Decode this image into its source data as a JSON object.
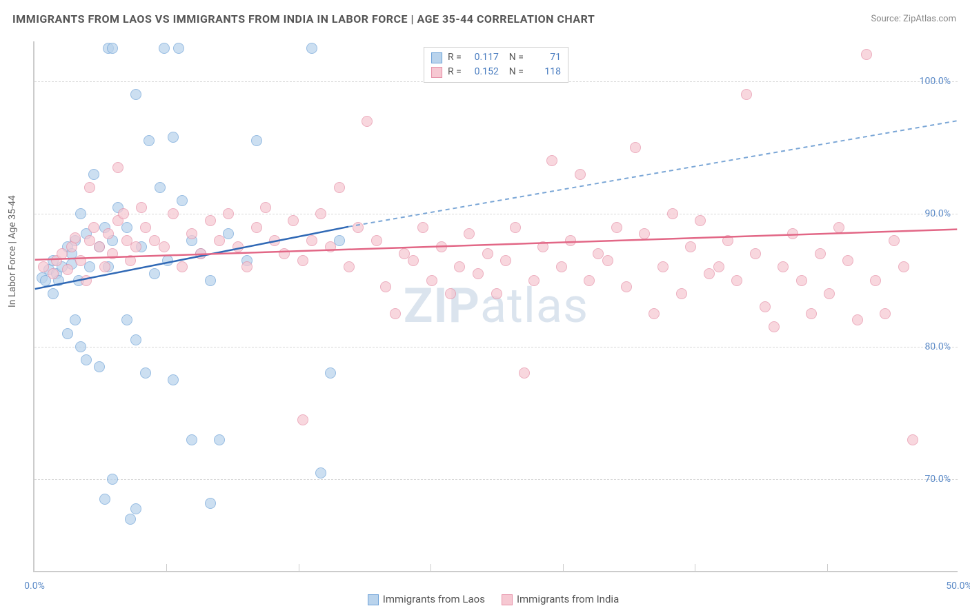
{
  "title": "IMMIGRANTS FROM LAOS VS IMMIGRANTS FROM INDIA IN LABOR FORCE | AGE 35-44 CORRELATION CHART",
  "source_label": "Source:",
  "source_name": "ZipAtlas.com",
  "watermark_a": "ZIP",
  "watermark_b": "atlas",
  "chart": {
    "type": "scatter",
    "ylabel": "In Labor Force | Age 35-44",
    "xlim": [
      0,
      50
    ],
    "ylim": [
      63,
      103
    ],
    "x_ticks": [
      0.0,
      50.0
    ],
    "x_tick_labels": [
      "0.0%",
      "50.0%"
    ],
    "x_minor_ticks": [
      7.14,
      14.29,
      21.43,
      28.57,
      35.71,
      42.86
    ],
    "y_ticks": [
      70.0,
      80.0,
      90.0,
      100.0
    ],
    "y_tick_labels": [
      "70.0%",
      "80.0%",
      "90.0%",
      "100.0%"
    ],
    "background_color": "#ffffff",
    "grid_color": "#d8d8d8",
    "axis_color": "#cccccc",
    "tick_label_color": "#5b8ac7",
    "point_radius": 8,
    "series": [
      {
        "name": "Immigrants from Laos",
        "color_fill": "#b9d3ec",
        "color_stroke": "#6fa3d8",
        "R": "0.117",
        "N": "71",
        "trend": {
          "x1": 0,
          "y1": 84.3,
          "x2": 17,
          "y2": 89.0,
          "x2_dash": 50,
          "y2_dash": 97.0,
          "solid_color": "#2f68b5",
          "dash_color": "#7aa6d6",
          "width": 2.5
        },
        "points": [
          [
            0.4,
            85.2
          ],
          [
            0.6,
            85.0
          ],
          [
            0.8,
            85.8
          ],
          [
            1.0,
            86.5
          ],
          [
            1.0,
            84.0
          ],
          [
            1.2,
            85.5
          ],
          [
            1.3,
            85.0
          ],
          [
            1.5,
            86.0
          ],
          [
            1.8,
            87.5
          ],
          [
            2.0,
            86.2
          ],
          [
            2.0,
            87.0
          ],
          [
            2.2,
            88.0
          ],
          [
            2.4,
            85.0
          ],
          [
            2.5,
            90.0
          ],
          [
            2.8,
            88.5
          ],
          [
            3.0,
            86.0
          ],
          [
            3.2,
            93.0
          ],
          [
            3.5,
            87.5
          ],
          [
            3.8,
            89.0
          ],
          [
            4.0,
            86.0
          ],
          [
            4.2,
            88.0
          ],
          [
            4.5,
            90.5
          ],
          [
            2.5,
            80.0
          ],
          [
            2.8,
            79.0
          ],
          [
            3.5,
            78.5
          ],
          [
            1.8,
            81.0
          ],
          [
            2.2,
            82.0
          ],
          [
            4.0,
            102.5
          ],
          [
            4.2,
            102.5
          ],
          [
            7.0,
            102.5
          ],
          [
            7.8,
            102.5
          ],
          [
            15.0,
            102.5
          ],
          [
            5.5,
            99.0
          ],
          [
            6.2,
            95.5
          ],
          [
            7.5,
            95.8
          ],
          [
            6.8,
            92.0
          ],
          [
            8.0,
            91.0
          ],
          [
            5.0,
            89.0
          ],
          [
            5.8,
            87.5
          ],
          [
            6.5,
            85.5
          ],
          [
            7.2,
            86.5
          ],
          [
            8.5,
            88.0
          ],
          [
            9.0,
            87.0
          ],
          [
            9.5,
            85.0
          ],
          [
            10.5,
            88.5
          ],
          [
            11.5,
            86.5
          ],
          [
            12.0,
            95.5
          ],
          [
            5.0,
            82.0
          ],
          [
            5.5,
            80.5
          ],
          [
            6.0,
            78.0
          ],
          [
            7.5,
            77.5
          ],
          [
            8.5,
            73.0
          ],
          [
            3.8,
            68.5
          ],
          [
            4.2,
            70.0
          ],
          [
            5.2,
            67.0
          ],
          [
            5.5,
            67.8
          ],
          [
            9.5,
            68.2
          ],
          [
            10.0,
            73.0
          ],
          [
            15.5,
            70.5
          ],
          [
            16.0,
            78.0
          ],
          [
            16.5,
            88.0
          ]
        ]
      },
      {
        "name": "Immigrants from India",
        "color_fill": "#f6c8d2",
        "color_stroke": "#e690a7",
        "R": "0.152",
        "N": "118",
        "trend": {
          "x1": 0,
          "y1": 86.5,
          "x2": 50,
          "y2": 88.8,
          "solid_color": "#e26786",
          "width": 2.5
        },
        "points": [
          [
            0.5,
            86.0
          ],
          [
            1.0,
            85.5
          ],
          [
            1.2,
            86.5
          ],
          [
            1.5,
            87.0
          ],
          [
            1.8,
            85.8
          ],
          [
            2.0,
            87.5
          ],
          [
            2.2,
            88.2
          ],
          [
            2.5,
            86.5
          ],
          [
            2.8,
            85.0
          ],
          [
            3.0,
            88.0
          ],
          [
            3.2,
            89.0
          ],
          [
            3.5,
            87.5
          ],
          [
            3.8,
            86.0
          ],
          [
            4.0,
            88.5
          ],
          [
            4.2,
            87.0
          ],
          [
            4.5,
            89.5
          ],
          [
            4.8,
            90.0
          ],
          [
            5.0,
            88.0
          ],
          [
            5.2,
            86.5
          ],
          [
            5.5,
            87.5
          ],
          [
            5.8,
            90.5
          ],
          [
            6.0,
            89.0
          ],
          [
            6.5,
            88.0
          ],
          [
            7.0,
            87.5
          ],
          [
            7.5,
            90.0
          ],
          [
            8.0,
            86.0
          ],
          [
            8.5,
            88.5
          ],
          [
            9.0,
            87.0
          ],
          [
            9.5,
            89.5
          ],
          [
            10.0,
            88.0
          ],
          [
            10.5,
            90.0
          ],
          [
            11.0,
            87.5
          ],
          [
            11.5,
            86.0
          ],
          [
            12.0,
            89.0
          ],
          [
            12.5,
            90.5
          ],
          [
            13.0,
            88.0
          ],
          [
            13.5,
            87.0
          ],
          [
            14.0,
            89.5
          ],
          [
            14.5,
            86.5
          ],
          [
            15.0,
            88.0
          ],
          [
            15.5,
            90.0
          ],
          [
            16.0,
            87.5
          ],
          [
            16.5,
            92.0
          ],
          [
            17.0,
            86.0
          ],
          [
            17.5,
            89.0
          ],
          [
            18.0,
            97.0
          ],
          [
            18.5,
            88.0
          ],
          [
            19.0,
            84.5
          ],
          [
            19.5,
            82.5
          ],
          [
            20.0,
            87.0
          ],
          [
            20.5,
            86.5
          ],
          [
            21.0,
            89.0
          ],
          [
            21.5,
            85.0
          ],
          [
            22.0,
            87.5
          ],
          [
            22.5,
            84.0
          ],
          [
            23.0,
            86.0
          ],
          [
            23.5,
            88.5
          ],
          [
            24.0,
            85.5
          ],
          [
            24.5,
            87.0
          ],
          [
            25.0,
            84.0
          ],
          [
            25.5,
            86.5
          ],
          [
            26.0,
            89.0
          ],
          [
            26.5,
            78.0
          ],
          [
            27.0,
            85.0
          ],
          [
            27.5,
            87.5
          ],
          [
            28.0,
            94.0
          ],
          [
            28.5,
            86.0
          ],
          [
            29.0,
            88.0
          ],
          [
            29.5,
            93.0
          ],
          [
            30.0,
            85.0
          ],
          [
            30.5,
            87.0
          ],
          [
            31.0,
            86.5
          ],
          [
            31.5,
            89.0
          ],
          [
            32.0,
            84.5
          ],
          [
            32.5,
            95.0
          ],
          [
            33.0,
            88.5
          ],
          [
            33.5,
            82.5
          ],
          [
            34.0,
            86.0
          ],
          [
            34.5,
            90.0
          ],
          [
            35.0,
            84.0
          ],
          [
            35.5,
            87.5
          ],
          [
            36.0,
            89.5
          ],
          [
            36.5,
            85.5
          ],
          [
            37.0,
            86.0
          ],
          [
            37.5,
            88.0
          ],
          [
            38.0,
            85.0
          ],
          [
            38.5,
            99.0
          ],
          [
            39.0,
            87.0
          ],
          [
            39.5,
            83.0
          ],
          [
            40.0,
            81.5
          ],
          [
            40.5,
            86.0
          ],
          [
            41.0,
            88.5
          ],
          [
            41.5,
            85.0
          ],
          [
            42.0,
            82.5
          ],
          [
            42.5,
            87.0
          ],
          [
            43.0,
            84.0
          ],
          [
            43.5,
            89.0
          ],
          [
            44.0,
            86.5
          ],
          [
            44.5,
            82.0
          ],
          [
            45.0,
            102.0
          ],
          [
            45.5,
            85.0
          ],
          [
            46.0,
            82.5
          ],
          [
            46.5,
            88.0
          ],
          [
            47.0,
            86.0
          ],
          [
            47.5,
            73.0
          ],
          [
            14.5,
            74.5
          ],
          [
            3.0,
            92.0
          ],
          [
            4.5,
            93.5
          ]
        ]
      }
    ]
  },
  "legend_bottom": [
    {
      "swatch_fill": "#b9d3ec",
      "swatch_stroke": "#6fa3d8",
      "label": "Immigrants from Laos"
    },
    {
      "swatch_fill": "#f6c8d2",
      "swatch_stroke": "#e690a7",
      "label": "Immigrants from India"
    }
  ]
}
